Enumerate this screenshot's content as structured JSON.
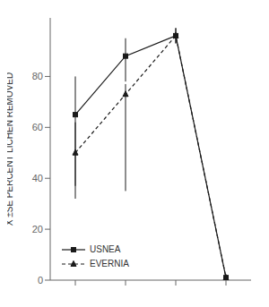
{
  "chart_data": {
    "type": "line",
    "ylabel": "X̄ ±SE PERCENT LICHEN REMOVED",
    "x": [
      1,
      2,
      3,
      4
    ],
    "series": [
      {
        "name": "USNEA",
        "color": "#1a1a1a",
        "values": [
          65,
          88,
          96,
          1
        ],
        "yerr_lo": [
          28,
          10,
          3,
          0
        ],
        "yerr_hi": [
          15,
          7,
          3,
          0
        ],
        "marker": "square",
        "line_style": "solid"
      },
      {
        "name": "EVERNIA",
        "color": "#1a1a1a",
        "values": [
          50,
          73,
          96,
          1
        ],
        "yerr_lo": [
          18,
          38,
          3,
          0
        ],
        "yerr_hi": [
          12,
          4,
          3,
          0
        ],
        "marker": "triangle",
        "line_style": "dashed"
      }
    ],
    "xlim": [
      0.5,
      4.5
    ],
    "xticks": [
      1,
      2,
      3,
      4
    ],
    "ylim": [
      0,
      103
    ],
    "yticks": [
      0,
      20,
      40,
      60,
      80
    ],
    "tick_labels": "y",
    "grid": false,
    "legend": "lower left"
  }
}
